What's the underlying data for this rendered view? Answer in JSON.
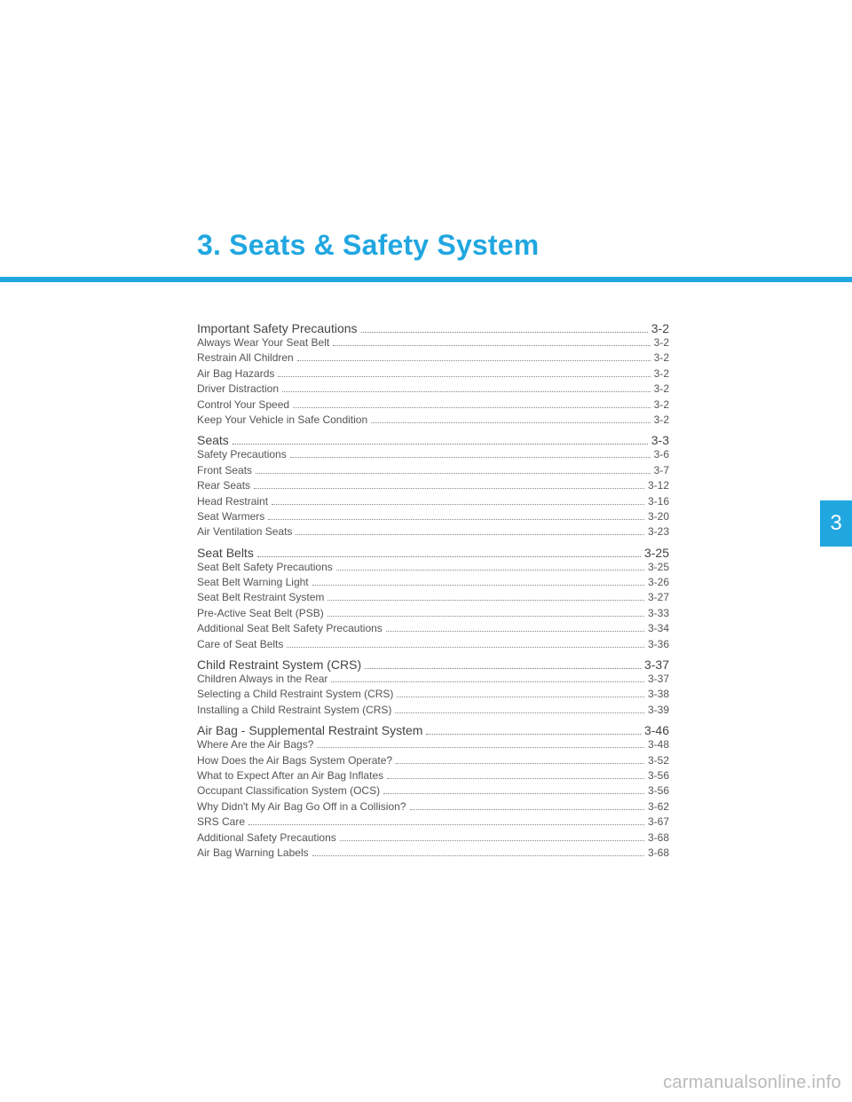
{
  "colors": {
    "accent": "#21a7e0",
    "title": "#21a7e0",
    "watermark": "#b9b9b9",
    "page_bg": "#ffffff"
  },
  "title": "3. Seats & Safety System",
  "side_tab": "3",
  "watermark": "carmanualsonline.info",
  "toc": [
    {
      "label": "Important Safety Precautions",
      "page": "3-2",
      "items": [
        {
          "label": "Always Wear Your Seat Belt",
          "page": "3-2"
        },
        {
          "label": "Restrain All Children",
          "page": "3-2"
        },
        {
          "label": "Air Bag Hazards",
          "page": "3-2"
        },
        {
          "label": "Driver Distraction",
          "page": "3-2"
        },
        {
          "label": "Control Your Speed",
          "page": "3-2"
        },
        {
          "label": "Keep Your Vehicle in Safe Condition",
          "page": "3-2"
        }
      ]
    },
    {
      "label": "Seats",
      "page": "3-3",
      "items": [
        {
          "label": "Safety Precautions",
          "page": "3-6"
        },
        {
          "label": "Front Seats",
          "page": "3-7"
        },
        {
          "label": "Rear Seats",
          "page": "3-12"
        },
        {
          "label": "Head Restraint",
          "page": "3-16"
        },
        {
          "label": "Seat Warmers",
          "page": "3-20"
        },
        {
          "label": "Air Ventilation Seats",
          "page": "3-23"
        }
      ]
    },
    {
      "label": "Seat Belts",
      "page": "3-25",
      "items": [
        {
          "label": "Seat Belt Safety Precautions",
          "page": "3-25"
        },
        {
          "label": "Seat Belt Warning Light",
          "page": "3-26"
        },
        {
          "label": "Seat Belt Restraint System",
          "page": "3-27"
        },
        {
          "label": "Pre-Active Seat Belt (PSB)",
          "page": "3-33"
        },
        {
          "label": "Additional Seat Belt Safety Precautions",
          "page": "3-34"
        },
        {
          "label": "Care of Seat Belts",
          "page": "3-36"
        }
      ]
    },
    {
      "label": "Child Restraint System (CRS)",
      "page": "3-37",
      "items": [
        {
          "label": "Children Always in the Rear",
          "page": "3-37"
        },
        {
          "label": "Selecting a Child Restraint System (CRS)",
          "page": "3-38"
        },
        {
          "label": "Installing a Child Restraint System (CRS)",
          "page": "3-39"
        }
      ]
    },
    {
      "label": "Air Bag - Supplemental Restraint System",
      "page": "3-46",
      "items": [
        {
          "label": "Where Are the Air Bags?",
          "page": "3-48"
        },
        {
          "label": "How Does the Air Bags System Operate?",
          "page": "3-52"
        },
        {
          "label": "What to Expect After an Air Bag Inflates",
          "page": "3-56"
        },
        {
          "label": "Occupant Classification System (OCS)",
          "page": "3-56"
        },
        {
          "label": "Why Didn't My Air Bag Go Off in a Collision?",
          "page": "3-62"
        },
        {
          "label": "SRS Care",
          "page": "3-67"
        },
        {
          "label": "Additional Safety Precautions",
          "page": "3-68"
        },
        {
          "label": "Air Bag Warning Labels",
          "page": "3-68"
        }
      ]
    }
  ]
}
